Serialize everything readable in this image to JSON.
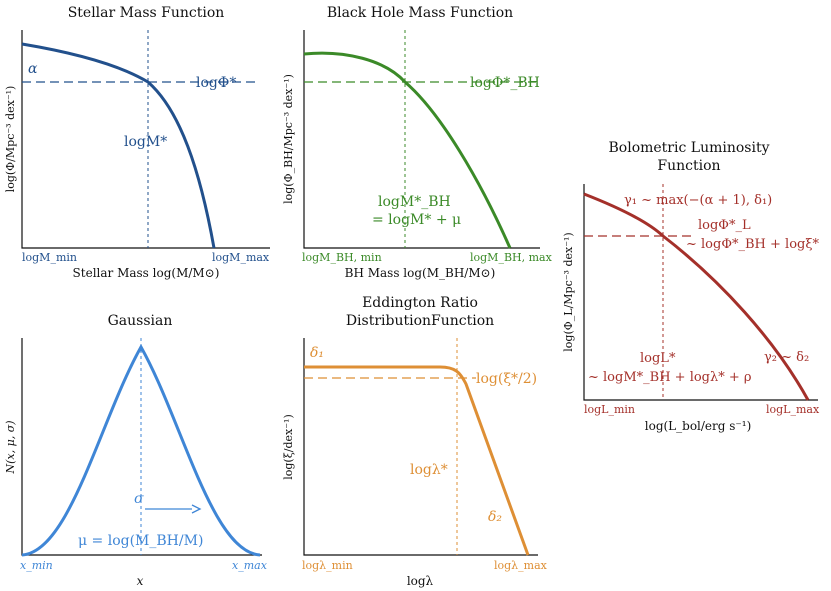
{
  "colors": {
    "smf": "#22508c",
    "bhmf": "#3b8a28",
    "gauss": "#3f86d6",
    "erdf": "#de8f35",
    "blf": "#a4302a",
    "axis": "#111111"
  },
  "smf": {
    "title": "Stellar Mass Function",
    "xlabel": "Stellar Mass log(M/M⊙)",
    "ylabel": "log(Φ/Mpc⁻³ dex⁻¹)",
    "xmin_label": "logM_min",
    "xmax_label": "logM_max",
    "alpha_label": "α",
    "phi_label": "logΦ*",
    "mstar_label": "logM*"
  },
  "bhmf": {
    "title": "Black Hole Mass Function",
    "xlabel": "BH Mass log(M_BH/M⊙)",
    "ylabel": "log(Φ_BH/Mpc⁻³ dex⁻¹)",
    "xmin_label": "logM_BH, min",
    "xmax_label": "logM_BH, max",
    "phi_label": "logΦ*_BH",
    "mstar_label_1": "logM*_BH",
    "mstar_label_2": "= logM* + μ"
  },
  "gauss": {
    "title": "Gaussian",
    "xlabel": "x",
    "ylabel": "N(x, μ, σ)",
    "xmin_label": "x_min",
    "xmax_label": "x_max",
    "sigma_label": "σ",
    "mu_label": "μ = log(M_BH/M)"
  },
  "erdf": {
    "title_1": "Eddington Ratio",
    "title_2": "DistributionFunction",
    "xlabel": "logλ",
    "ylabel": "log(ξ/dex⁻¹)",
    "xmin_label": "logλ_min",
    "xmax_label": "logλ_max",
    "delta1_label": "δ₁",
    "delta2_label": "δ₂",
    "xi_label": "log(ξ*/2)",
    "lstar_label": "logλ*"
  },
  "blf": {
    "title_1": "Bolometric Luminosity",
    "title_2": "Function",
    "xlabel": "log(L_bol/erg s⁻¹)",
    "ylabel": "log(Φ_L/Mpc⁻³ dex⁻¹)",
    "xmin_label": "logL_min",
    "xmax_label": "logL_max",
    "gamma1_label": "γ₁ ~ max(−(α + 1), δ₁)",
    "phi_label_1": "logΦ*_L",
    "phi_label_2": "~ logΦ*_BH + logξ*",
    "lstar_label_1": "logL*",
    "lstar_label_2": "~ logM*_BH + logλ* + ρ",
    "gamma2_label": "γ₂ ~ δ₂"
  }
}
